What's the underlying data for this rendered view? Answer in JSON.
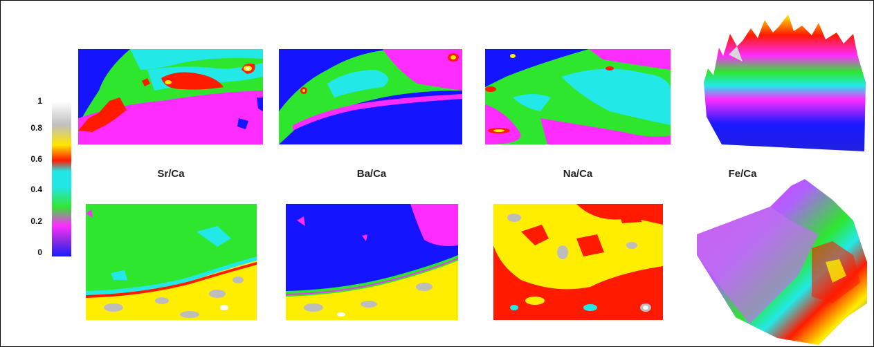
{
  "figure": {
    "panel_labels": [
      "Sr/Ca",
      "Ba/Ca",
      "Na/Ca",
      "Fe/Ca"
    ]
  },
  "color_scale": {
    "ticks": [
      "1",
      "0.8",
      "0.6",
      "0.4",
      "0.2",
      "0"
    ],
    "colors": [
      "#1a1aff",
      "#8a2be2",
      "#ff2cff",
      "#32e632",
      "#22e6e6",
      "#ffe600",
      "#ff1a00",
      "#c0c0c0",
      "#ffffff"
    ]
  },
  "palette": {
    "blue": "#1414ff",
    "magenta": "#ff2cff",
    "green": "#2ee62e",
    "cyan": "#22e8e8",
    "red": "#ff1a00",
    "yellow": "#ffee00",
    "grey": "#bdbdbd",
    "white": "#ffffff"
  }
}
